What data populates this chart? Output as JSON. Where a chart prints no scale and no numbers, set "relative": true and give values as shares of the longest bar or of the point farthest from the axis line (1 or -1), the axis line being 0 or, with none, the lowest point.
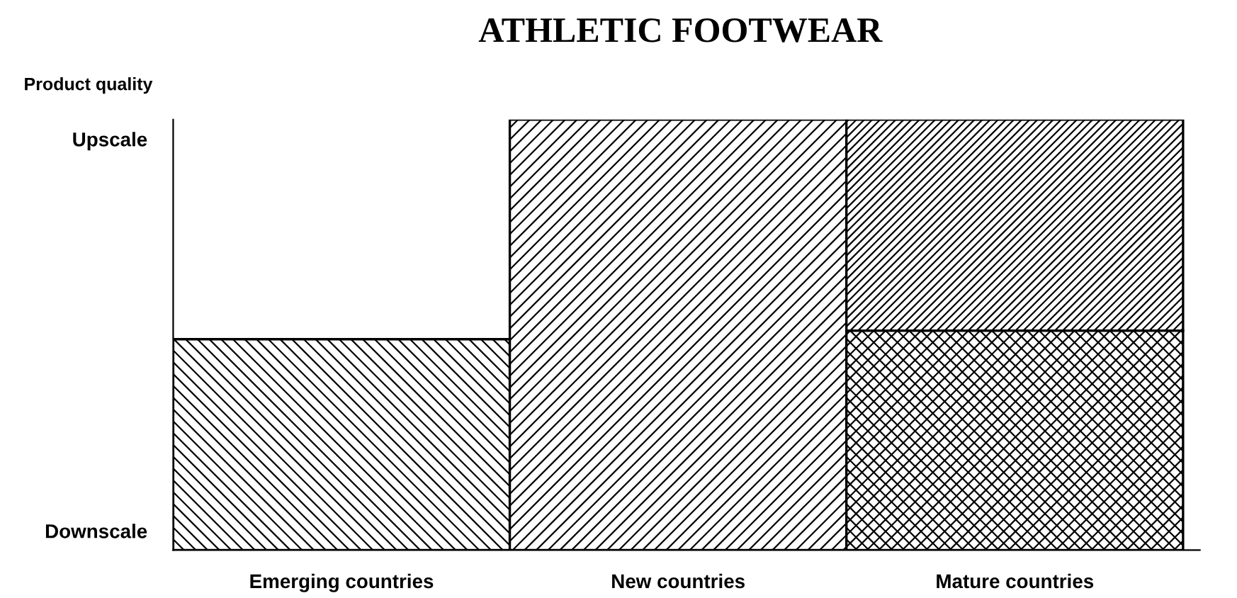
{
  "chart_data": {
    "type": "bar",
    "title": "ATHLETIC FOOTWEAR",
    "ylabel": "Product quality",
    "categories": [
      "Emerging countries",
      "New countries",
      "Mature countries"
    ],
    "relative": true,
    "stacked": true,
    "grid": false,
    "legend": false,
    "annotations": [
      "Upscale",
      "Downscale"
    ],
    "series": [
      {
        "color": "#000000",
        "values": [
          0.49,
          1.0,
          0.51
        ]
      },
      {
        "color": "#000000",
        "values": [
          null,
          null,
          0.49
        ]
      }
    ]
  }
}
